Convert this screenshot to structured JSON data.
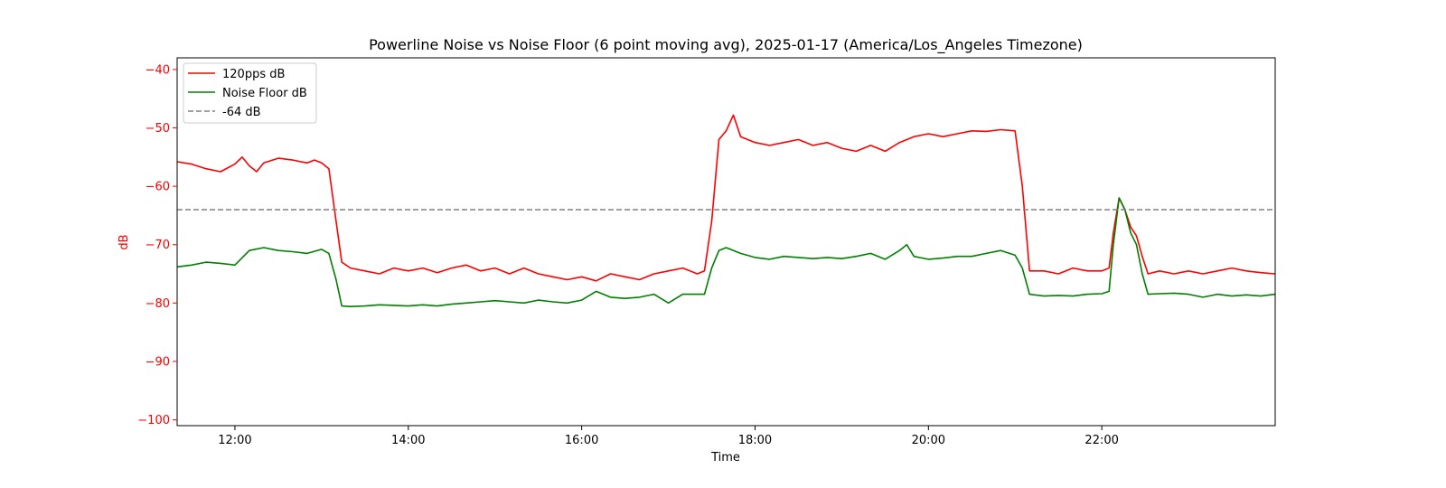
{
  "chart_data": {
    "type": "line",
    "title": "Powerline Noise vs Noise Floor (6 point moving avg), 2025-01-17 (America/Los_Angeles Timezone)",
    "xlabel": "Time",
    "ylabel": "dB",
    "xlim": [
      "11:20",
      "24:00"
    ],
    "ylim": [
      -101,
      -38
    ],
    "x_ticks": [
      "12:00",
      "14:00",
      "16:00",
      "18:00",
      "20:00",
      "22:00"
    ],
    "y_ticks": [
      "−100",
      "−90",
      "−80",
      "−70",
      "−60",
      "−50",
      "−40"
    ],
    "grid": false,
    "legend_position": "top-left",
    "series": [
      {
        "name": "120pps dB",
        "color": "#ff0000",
        "points": [
          [
            "11:20",
            -55.8
          ],
          [
            "11:30",
            -56.2
          ],
          [
            "11:40",
            -57.0
          ],
          [
            "11:50",
            -57.5
          ],
          [
            "12:00",
            -56.2
          ],
          [
            "12:05",
            -55.0
          ],
          [
            "12:10",
            -56.5
          ],
          [
            "12:15",
            -57.5
          ],
          [
            "12:20",
            -56.0
          ],
          [
            "12:30",
            -55.2
          ],
          [
            "12:40",
            -55.5
          ],
          [
            "12:50",
            -56.0
          ],
          [
            "12:55",
            -55.5
          ],
          [
            "13:00",
            -56.0
          ],
          [
            "13:05",
            -57.0
          ],
          [
            "13:10",
            -66.0
          ],
          [
            "13:14",
            -73.0
          ],
          [
            "13:20",
            -74.0
          ],
          [
            "13:30",
            -74.5
          ],
          [
            "13:40",
            -75.0
          ],
          [
            "13:50",
            -74.0
          ],
          [
            "14:00",
            -74.5
          ],
          [
            "14:10",
            -74.0
          ],
          [
            "14:20",
            -74.8
          ],
          [
            "14:30",
            -74.0
          ],
          [
            "14:40",
            -73.5
          ],
          [
            "14:50",
            -74.5
          ],
          [
            "15:00",
            -74.0
          ],
          [
            "15:10",
            -75.0
          ],
          [
            "15:20",
            -74.0
          ],
          [
            "15:30",
            -75.0
          ],
          [
            "15:40",
            -75.5
          ],
          [
            "15:50",
            -76.0
          ],
          [
            "16:00",
            -75.5
          ],
          [
            "16:10",
            -76.2
          ],
          [
            "16:20",
            -75.0
          ],
          [
            "16:30",
            -75.5
          ],
          [
            "16:40",
            -76.0
          ],
          [
            "16:50",
            -75.0
          ],
          [
            "17:00",
            -74.5
          ],
          [
            "17:10",
            -74.0
          ],
          [
            "17:20",
            -75.0
          ],
          [
            "17:25",
            -74.5
          ],
          [
            "17:30",
            -66.0
          ],
          [
            "17:35",
            -52.0
          ],
          [
            "17:40",
            -50.5
          ],
          [
            "17:45",
            -47.8
          ],
          [
            "17:50",
            -51.5
          ],
          [
            "18:00",
            -52.5
          ],
          [
            "18:10",
            -53.0
          ],
          [
            "18:20",
            -52.5
          ],
          [
            "18:30",
            -52.0
          ],
          [
            "18:40",
            -53.0
          ],
          [
            "18:50",
            -52.5
          ],
          [
            "19:00",
            -53.5
          ],
          [
            "19:10",
            -54.0
          ],
          [
            "19:20",
            -53.0
          ],
          [
            "19:30",
            -54.0
          ],
          [
            "19:40",
            -52.5
          ],
          [
            "19:50",
            -51.5
          ],
          [
            "20:00",
            -51.0
          ],
          [
            "20:10",
            -51.5
          ],
          [
            "20:20",
            -51.0
          ],
          [
            "20:30",
            -50.5
          ],
          [
            "20:40",
            -50.6
          ],
          [
            "20:50",
            -50.3
          ],
          [
            "21:00",
            -50.5
          ],
          [
            "21:05",
            -60.0
          ],
          [
            "21:10",
            -74.5
          ],
          [
            "21:20",
            -74.5
          ],
          [
            "21:30",
            -75.0
          ],
          [
            "21:40",
            -74.0
          ],
          [
            "21:50",
            -74.5
          ],
          [
            "22:00",
            -74.5
          ],
          [
            "22:05",
            -74.0
          ],
          [
            "22:08",
            -68.0
          ],
          [
            "22:12",
            -62.0
          ],
          [
            "22:16",
            -64.0
          ],
          [
            "22:20",
            -67.0
          ],
          [
            "22:24",
            -68.5
          ],
          [
            "22:28",
            -72.0
          ],
          [
            "22:32",
            -75.0
          ],
          [
            "22:40",
            -74.5
          ],
          [
            "22:50",
            -75.0
          ],
          [
            "23:00",
            -74.5
          ],
          [
            "23:10",
            -75.0
          ],
          [
            "23:20",
            -74.5
          ],
          [
            "23:30",
            -74.0
          ],
          [
            "23:40",
            -74.5
          ],
          [
            "23:50",
            -74.8
          ],
          [
            "24:00",
            -75.0
          ]
        ]
      },
      {
        "name": "Noise Floor dB",
        "color": "#008000",
        "points": [
          [
            "11:20",
            -73.8
          ],
          [
            "11:30",
            -73.5
          ],
          [
            "11:40",
            -73.0
          ],
          [
            "11:50",
            -73.2
          ],
          [
            "12:00",
            -73.5
          ],
          [
            "12:10",
            -71.0
          ],
          [
            "12:20",
            -70.5
          ],
          [
            "12:30",
            -71.0
          ],
          [
            "12:40",
            -71.2
          ],
          [
            "12:50",
            -71.5
          ],
          [
            "13:00",
            -70.8
          ],
          [
            "13:05",
            -71.5
          ],
          [
            "13:10",
            -76.0
          ],
          [
            "13:14",
            -80.5
          ],
          [
            "13:20",
            -80.6
          ],
          [
            "13:30",
            -80.5
          ],
          [
            "13:40",
            -80.3
          ],
          [
            "13:50",
            -80.4
          ],
          [
            "14:00",
            -80.5
          ],
          [
            "14:10",
            -80.3
          ],
          [
            "14:20",
            -80.5
          ],
          [
            "14:30",
            -80.2
          ],
          [
            "14:40",
            -80.0
          ],
          [
            "14:50",
            -79.8
          ],
          [
            "15:00",
            -79.6
          ],
          [
            "15:10",
            -79.8
          ],
          [
            "15:20",
            -80.0
          ],
          [
            "15:30",
            -79.5
          ],
          [
            "15:40",
            -79.8
          ],
          [
            "15:50",
            -80.0
          ],
          [
            "16:00",
            -79.5
          ],
          [
            "16:10",
            -78.0
          ],
          [
            "16:20",
            -79.0
          ],
          [
            "16:30",
            -79.2
          ],
          [
            "16:40",
            -79.0
          ],
          [
            "16:50",
            -78.5
          ],
          [
            "17:00",
            -80.0
          ],
          [
            "17:10",
            -78.5
          ],
          [
            "17:25",
            -78.5
          ],
          [
            "17:30",
            -74.0
          ],
          [
            "17:35",
            -71.0
          ],
          [
            "17:40",
            -70.5
          ],
          [
            "17:50",
            -71.5
          ],
          [
            "18:00",
            -72.2
          ],
          [
            "18:10",
            -72.5
          ],
          [
            "18:20",
            -72.0
          ],
          [
            "18:30",
            -72.2
          ],
          [
            "18:40",
            -72.4
          ],
          [
            "18:50",
            -72.2
          ],
          [
            "19:00",
            -72.4
          ],
          [
            "19:10",
            -72.0
          ],
          [
            "19:20",
            -71.5
          ],
          [
            "19:30",
            -72.5
          ],
          [
            "19:40",
            -71.0
          ],
          [
            "19:45",
            -70.0
          ],
          [
            "19:50",
            -72.0
          ],
          [
            "20:00",
            -72.5
          ],
          [
            "20:10",
            -72.3
          ],
          [
            "20:20",
            -72.0
          ],
          [
            "20:30",
            -72.0
          ],
          [
            "20:40",
            -71.5
          ],
          [
            "20:50",
            -71.0
          ],
          [
            "21:00",
            -71.8
          ],
          [
            "21:05",
            -74.0
          ],
          [
            "21:10",
            -78.5
          ],
          [
            "21:20",
            -78.8
          ],
          [
            "21:30",
            -78.7
          ],
          [
            "21:40",
            -78.8
          ],
          [
            "21:50",
            -78.5
          ],
          [
            "22:00",
            -78.4
          ],
          [
            "22:05",
            -78.0
          ],
          [
            "22:08",
            -70.0
          ],
          [
            "22:12",
            -62.0
          ],
          [
            "22:16",
            -64.0
          ],
          [
            "22:20",
            -68.0
          ],
          [
            "22:24",
            -70.0
          ],
          [
            "22:28",
            -75.0
          ],
          [
            "22:32",
            -78.5
          ],
          [
            "22:40",
            -78.4
          ],
          [
            "22:50",
            -78.3
          ],
          [
            "23:00",
            -78.5
          ],
          [
            "23:10",
            -79.0
          ],
          [
            "23:20",
            -78.5
          ],
          [
            "23:30",
            -78.8
          ],
          [
            "23:40",
            -78.6
          ],
          [
            "23:50",
            -78.8
          ],
          [
            "24:00",
            -78.5
          ]
        ]
      },
      {
        "name": "-64 dB",
        "color": "#808080",
        "style": "dashed",
        "points": [
          [
            "11:20",
            -64
          ],
          [
            "24:00",
            -64
          ]
        ]
      }
    ]
  }
}
